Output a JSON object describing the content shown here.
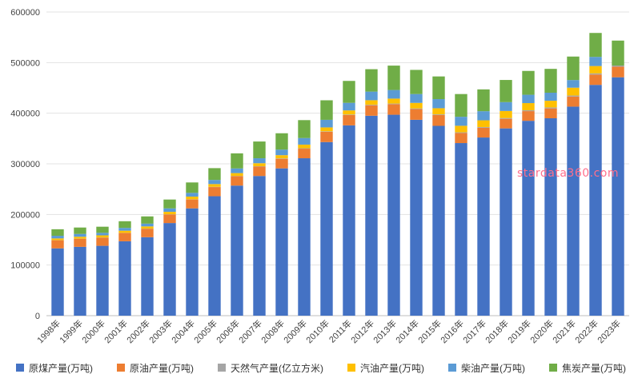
{
  "chart_data": {
    "type": "bar",
    "stacked": true,
    "categories": [
      "1998年",
      "1999年",
      "2000年",
      "2001年",
      "2002年",
      "2003年",
      "2004年",
      "2005年",
      "2006年",
      "2007年",
      "2008年",
      "2009年",
      "2010年",
      "2011年",
      "2012年",
      "2013年",
      "2014年",
      "2015年",
      "2016年",
      "2017年",
      "2018年",
      "2019年",
      "2020年",
      "2021年",
      "2022年",
      "2023年"
    ],
    "ylim": [
      0,
      600000
    ],
    "yticks": [
      0,
      100000,
      200000,
      300000,
      400000,
      500000,
      600000
    ],
    "ytick_labels": [
      "0",
      "100000",
      "200000",
      "300000",
      "400000",
      "500000",
      "600000"
    ],
    "grid": true,
    "legend_position": "bottom",
    "series": [
      {
        "name": "原煤产量(万吨)",
        "color": "#4472c4",
        "values": [
          133000,
          136000,
          138000,
          147000,
          155000,
          183000,
          212000,
          236000,
          257000,
          276000,
          291000,
          311000,
          343000,
          376000,
          395000,
          397000,
          387000,
          375000,
          341000,
          352000,
          370000,
          385000,
          390000,
          413000,
          456000,
          471000
        ]
      },
      {
        "name": "原油产量(万吨)",
        "color": "#ed7d31",
        "values": [
          16000,
          16000,
          16300,
          16400,
          16700,
          17000,
          17600,
          18100,
          18500,
          18600,
          19000,
          18900,
          20300,
          20400,
          20700,
          20900,
          21100,
          21400,
          19900,
          19200,
          18900,
          19100,
          19500,
          19900,
          20500,
          20900
        ]
      },
      {
        "name": "天然气产量(亿立方米)",
        "color": "#a5a5a5",
        "values": [
          230,
          250,
          270,
          300,
          330,
          350,
          410,
          490,
          590,
          690,
          800,
          850,
          950,
          1030,
          1070,
          1170,
          1300,
          1350,
          1370,
          1480,
          1600,
          1760,
          1920,
          2050,
          2200,
          2300
        ]
      },
      {
        "name": "汽油产量(万吨)",
        "color": "#ffc000",
        "values": [
          3400,
          3700,
          4100,
          4200,
          4300,
          4800,
          5200,
          5400,
          5600,
          5900,
          6300,
          7200,
          7700,
          8100,
          8900,
          9800,
          11000,
          12100,
          12900,
          13300,
          13900,
          14100,
          13200,
          15500,
          14500,
          0
        ]
      },
      {
        "name": "柴油产量(万吨)",
        "color": "#5b9bd5",
        "values": [
          5200,
          5500,
          5000,
          5500,
          5500,
          6800,
          7400,
          8200,
          9200,
          9800,
          11000,
          13000,
          15000,
          15000,
          17000,
          17000,
          17500,
          18000,
          17800,
          18000,
          17500,
          16500,
          15900,
          15100,
          18100,
          0
        ]
      },
      {
        "name": "焦炭产量(万吨)",
        "color": "#70ad47",
        "values": [
          12900,
          12700,
          12100,
          13200,
          14300,
          17500,
          20600,
          23300,
          29800,
          33100,
          32300,
          35400,
          38600,
          43300,
          44300,
          48200,
          47700,
          44800,
          44900,
          43100,
          43800,
          47100,
          47100,
          46400,
          47300,
          49300
        ]
      }
    ]
  },
  "watermark": "stardata360.com"
}
